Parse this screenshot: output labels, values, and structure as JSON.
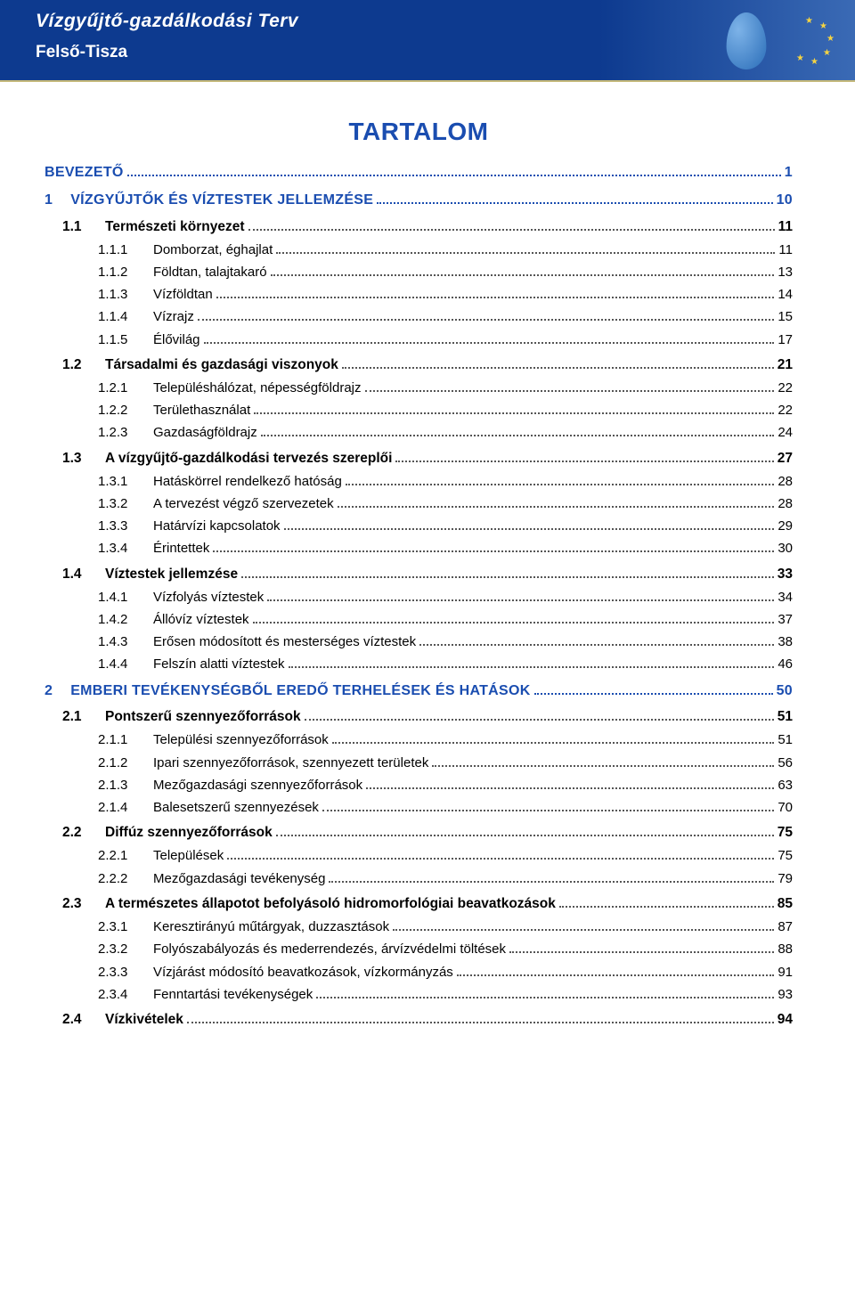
{
  "header": {
    "title": "Vízgyűjtő-gazdálkodási Terv",
    "subtitle": "Felső-Tisza",
    "title_color": "#ffffff",
    "bg_gradient_from": "#0d3a8f",
    "bg_gradient_to": "#3a6ab5"
  },
  "main_title": "TARTALOM",
  "colors": {
    "heading_blue": "#1a4db0",
    "text_black": "#000000",
    "dots": "#555555"
  },
  "typography": {
    "font_family": "Arial, Helvetica, sans-serif",
    "heading_font_family": "Verdana, Arial, sans-serif",
    "main_title_size_pt": 21,
    "l0_size_pt": 12,
    "l1_size_pt": 11.5,
    "l2_size_pt": 11
  },
  "toc": [
    {
      "level": 0,
      "num": "",
      "text": "BEVEZETŐ",
      "page": "1"
    },
    {
      "level": 0,
      "num": "1",
      "text": "VÍZGYŰJTŐK ÉS VÍZTESTEK JELLEMZÉSE",
      "page": "10"
    },
    {
      "level": 1,
      "num": "1.1",
      "text": "Természeti környezet",
      "page": "11"
    },
    {
      "level": 2,
      "num": "1.1.1",
      "text": "Domborzat, éghajlat",
      "page": "11"
    },
    {
      "level": 2,
      "num": "1.1.2",
      "text": "Földtan, talajtakaró",
      "page": "13"
    },
    {
      "level": 2,
      "num": "1.1.3",
      "text": "Vízföldtan",
      "page": "14"
    },
    {
      "level": 2,
      "num": "1.1.4",
      "text": "Vízrajz",
      "page": "15"
    },
    {
      "level": 2,
      "num": "1.1.5",
      "text": "Élővilág",
      "page": "17"
    },
    {
      "level": 1,
      "num": "1.2",
      "text": "Társadalmi és gazdasági viszonyok",
      "page": "21"
    },
    {
      "level": 2,
      "num": "1.2.1",
      "text": "Településhálózat, népességföldrajz",
      "page": "22"
    },
    {
      "level": 2,
      "num": "1.2.2",
      "text": "Területhasználat",
      "page": "22"
    },
    {
      "level": 2,
      "num": "1.2.3",
      "text": "Gazdaságföldrajz",
      "page": "24"
    },
    {
      "level": 1,
      "num": "1.3",
      "text": "A vízgyűjtő-gazdálkodási tervezés szereplői",
      "page": "27"
    },
    {
      "level": 2,
      "num": "1.3.1",
      "text": "Hatáskörrel rendelkező hatóság",
      "page": "28"
    },
    {
      "level": 2,
      "num": "1.3.2",
      "text": "A tervezést végző szervezetek",
      "page": "28"
    },
    {
      "level": 2,
      "num": "1.3.3",
      "text": "Határvízi kapcsolatok",
      "page": "29"
    },
    {
      "level": 2,
      "num": "1.3.4",
      "text": "Érintettek",
      "page": "30"
    },
    {
      "level": 1,
      "num": "1.4",
      "text": "Víztestek jellemzése",
      "page": "33"
    },
    {
      "level": 2,
      "num": "1.4.1",
      "text": "Vízfolyás víztestek",
      "page": "34"
    },
    {
      "level": 2,
      "num": "1.4.2",
      "text": "Állóvíz víztestek",
      "page": "37"
    },
    {
      "level": 2,
      "num": "1.4.3",
      "text": "Erősen módosított és mesterséges víztestek",
      "page": "38"
    },
    {
      "level": 2,
      "num": "1.4.4",
      "text": "Felszín alatti víztestek",
      "page": "46"
    },
    {
      "level": 0,
      "num": "2",
      "text": "EMBERI TEVÉKENYSÉGBŐL EREDŐ TERHELÉSEK ÉS HATÁSOK",
      "page": "50"
    },
    {
      "level": 1,
      "num": "2.1",
      "text": "Pontszerű szennyezőforrások",
      "page": "51"
    },
    {
      "level": 2,
      "num": "2.1.1",
      "text": "Települési szennyezőforrások",
      "page": "51"
    },
    {
      "level": 2,
      "num": "2.1.2",
      "text": "Ipari szennyezőforrások, szennyezett területek",
      "page": "56"
    },
    {
      "level": 2,
      "num": "2.1.3",
      "text": "Mezőgazdasági szennyezőforrások",
      "page": "63"
    },
    {
      "level": 2,
      "num": "2.1.4",
      "text": "Balesetszerű szennyezések",
      "page": "70"
    },
    {
      "level": 1,
      "num": "2.2",
      "text": "Diffúz szennyezőforrások",
      "page": "75"
    },
    {
      "level": 2,
      "num": "2.2.1",
      "text": "Települések",
      "page": "75"
    },
    {
      "level": 2,
      "num": "2.2.2",
      "text": "Mezőgazdasági tevékenység",
      "page": "79"
    },
    {
      "level": 1,
      "num": "2.3",
      "text": "A természetes állapotot befolyásoló hidromorfológiai beavatkozások",
      "page": "85"
    },
    {
      "level": 2,
      "num": "2.3.1",
      "text": "Keresztirányú műtárgyak, duzzasztások",
      "page": "87"
    },
    {
      "level": 2,
      "num": "2.3.2",
      "text": "Folyószabályozás és mederrendezés, árvízvédelmi töltések",
      "page": "88"
    },
    {
      "level": 2,
      "num": "2.3.3",
      "text": "Vízjárást módosító beavatkozások, vízkormányzás",
      "page": "91"
    },
    {
      "level": 2,
      "num": "2.3.4",
      "text": "Fenntartási tevékenységek",
      "page": "93"
    },
    {
      "level": 1,
      "num": "2.4",
      "text": "Vízkivételek",
      "page": "94"
    }
  ]
}
